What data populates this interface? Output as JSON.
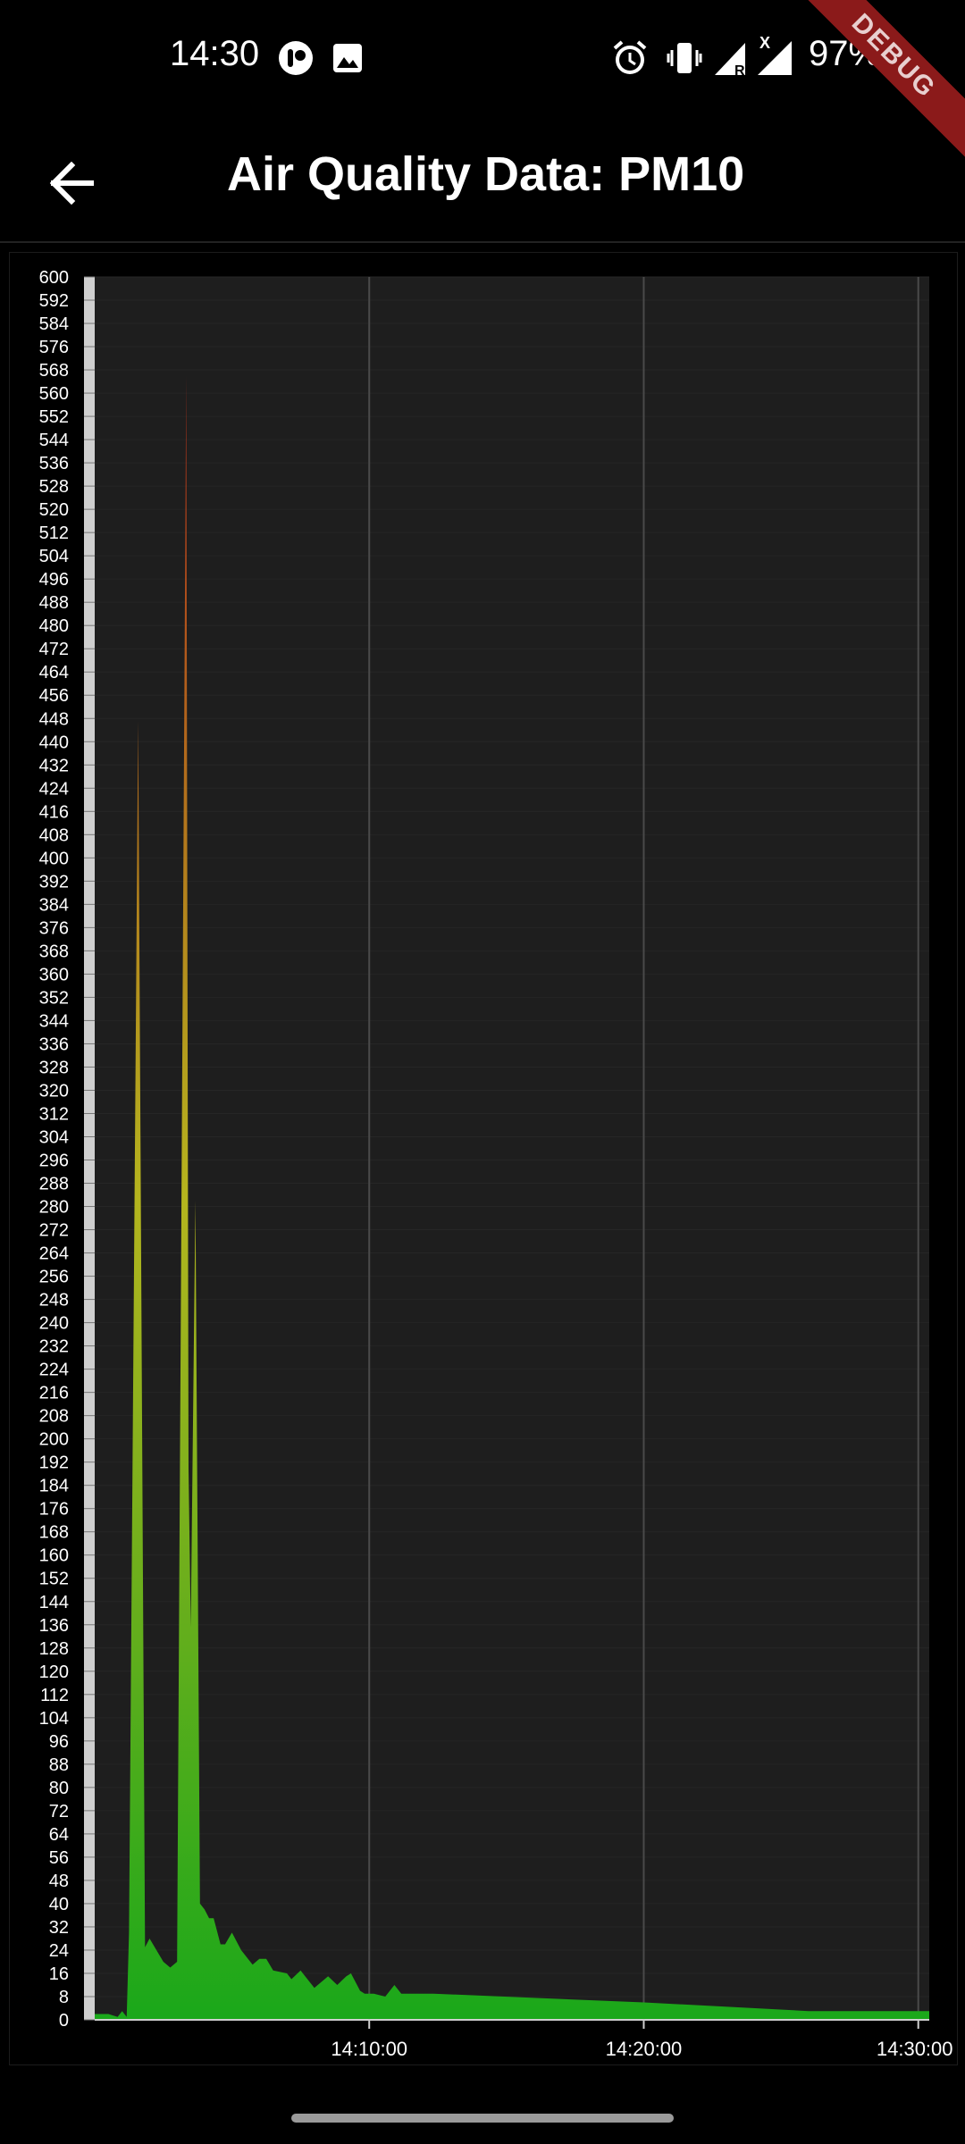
{
  "status_bar": {
    "time": "14:30",
    "battery": "97%",
    "icons": [
      "notification-app-icon",
      "image-icon",
      "alarm-icon",
      "vibrate-icon",
      "signal-roaming-icon",
      "signal-icon",
      "battery-charging-icon"
    ]
  },
  "app_bar": {
    "title": "Air Quality Data: PM10",
    "back_icon": "arrow-left-icon"
  },
  "debug_banner": "DEBUG",
  "colors": {
    "background": "#000000",
    "plot_background": "#1e1e1e",
    "area_low": "#1aa81a",
    "area_mid": "#b5b51e",
    "area_high": "#b02a1a"
  },
  "chart_data": {
    "type": "area",
    "title": "Air Quality Data: PM10",
    "xlabel": "",
    "ylabel": "",
    "ylim": [
      0,
      600
    ],
    "ytick_step": 8,
    "x_ticks": [
      "14:10:00",
      "14:20:00",
      "14:30:00"
    ],
    "x_range": [
      "14:00:00",
      "14:30:24"
    ],
    "grid": "vertical",
    "series": [
      {
        "times": [
          "14:00:00",
          "14:00:30",
          "14:00:50",
          "14:01:00",
          "14:01:10",
          "14:01:15",
          "14:01:35",
          "14:01:50",
          "14:02:00",
          "14:02:15",
          "14:02:30",
          "14:02:45",
          "14:03:00",
          "14:03:20",
          "14:03:25",
          "14:03:30",
          "14:03:40",
          "14:03:50",
          "14:04:00",
          "14:04:10",
          "14:04:20",
          "14:04:35",
          "14:04:45",
          "14:05:00",
          "14:05:20",
          "14:05:30",
          "14:05:45",
          "14:06:00",
          "14:06:15",
          "14:06:30",
          "14:07:00",
          "14:07:10",
          "14:07:30",
          "14:07:40",
          "14:08:00",
          "14:08:30",
          "14:08:50",
          "14:09:10",
          "14:09:20",
          "14:09:40",
          "14:09:50",
          "14:10:10",
          "14:10:35",
          "14:10:55",
          "14:11:10",
          "14:11:20",
          "14:11:35",
          "14:11:50",
          "14:12:05",
          "14:12:10",
          "14:12:20",
          "14:20:00",
          "14:26:00",
          "14:30:24"
        ],
        "values": [
          2,
          2,
          1,
          3,
          1,
          30,
          447,
          25,
          28,
          24,
          20,
          18,
          20,
          566,
          190,
          135,
          282,
          40,
          38,
          35,
          35,
          26,
          26,
          30,
          24,
          22,
          19,
          21,
          21,
          17,
          16,
          14,
          17,
          15,
          11,
          15,
          12,
          15,
          16,
          10,
          9,
          9,
          8,
          12,
          9,
          9,
          9,
          9,
          9,
          9,
          9,
          6,
          3,
          3
        ]
      }
    ]
  }
}
